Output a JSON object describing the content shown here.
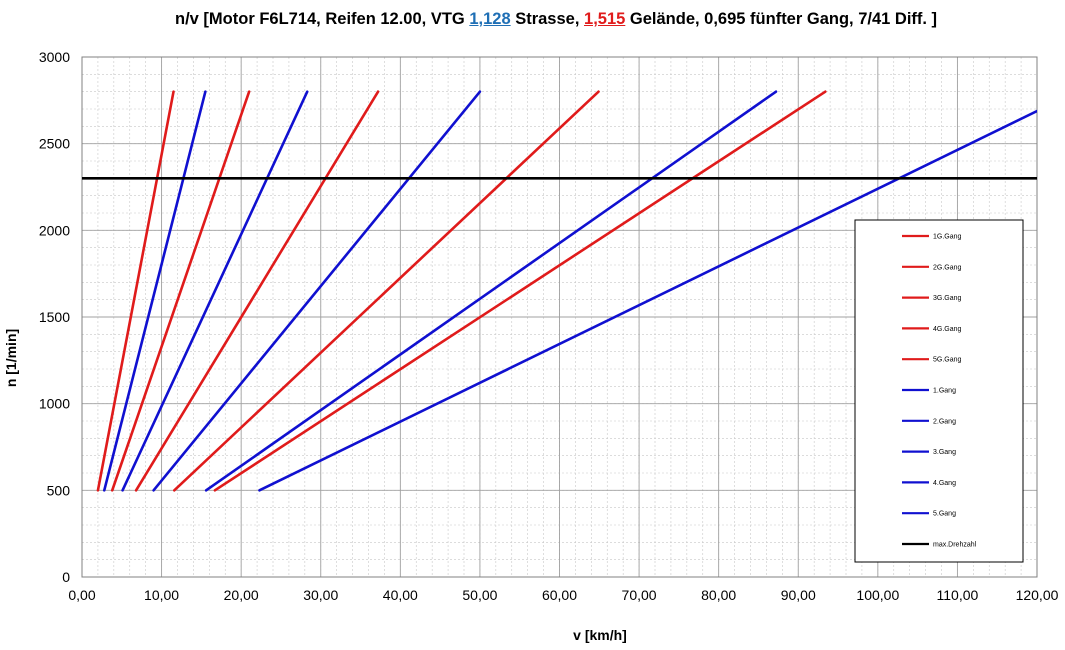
{
  "title": {
    "part1": "n/v [Motor F6L714, Reifen 12.00, VTG ",
    "vtg_street": "1,128",
    "part2": " Strasse, ",
    "vtg_offroad": "1,515",
    "part3": " Gelände, 0,695 fünfter Gang, 7/41 Diff. ]"
  },
  "colors": {
    "red": "#e01b1b",
    "blue": "#1010d0",
    "black": "#000000",
    "grid": "#c0c0c0"
  },
  "chart_data": {
    "type": "line",
    "xlabel": "v [km/h]",
    "ylabel": "n [1/min]",
    "xlim": [
      0,
      120
    ],
    "ylim": [
      0,
      3000
    ],
    "x_ticks": [
      "0,00",
      "10,00",
      "20,00",
      "30,00",
      "40,00",
      "50,00",
      "60,00",
      "70,00",
      "80,00",
      "90,00",
      "100,00",
      "110,00",
      "120,00"
    ],
    "y_ticks": [
      "0",
      "500",
      "1000",
      "1500",
      "2000",
      "2500",
      "3000"
    ],
    "grid": true,
    "legend_position": "right",
    "series": [
      {
        "name": "1G.Gang",
        "color": "red",
        "points": [
          [
            2.0,
            500
          ],
          [
            11.5,
            2800
          ]
        ]
      },
      {
        "name": "2G.Gang",
        "color": "red",
        "points": [
          [
            3.8,
            500
          ],
          [
            21.0,
            2800
          ]
        ]
      },
      {
        "name": "3G.Gang",
        "color": "red",
        "points": [
          [
            6.8,
            500
          ],
          [
            37.2,
            2800
          ]
        ]
      },
      {
        "name": "4G.Gang",
        "color": "red",
        "points": [
          [
            11.6,
            500
          ],
          [
            64.9,
            2800
          ]
        ]
      },
      {
        "name": "5G.Gang",
        "color": "red",
        "points": [
          [
            16.7,
            500
          ],
          [
            93.4,
            2800
          ]
        ]
      },
      {
        "name": "1.Gang",
        "color": "blue",
        "points": [
          [
            2.8,
            500
          ],
          [
            15.5,
            2800
          ]
        ]
      },
      {
        "name": "2.Gang",
        "color": "blue",
        "points": [
          [
            5.1,
            500
          ],
          [
            28.3,
            2800
          ]
        ]
      },
      {
        "name": "3.Gang",
        "color": "blue",
        "points": [
          [
            9.0,
            500
          ],
          [
            50.0,
            2800
          ]
        ]
      },
      {
        "name": "4.Gang",
        "color": "blue",
        "points": [
          [
            15.6,
            500
          ],
          [
            87.2,
            2800
          ]
        ]
      },
      {
        "name": "5.Gang",
        "color": "blue",
        "points": [
          [
            22.3,
            500
          ],
          [
            125.0,
            2800
          ]
        ]
      },
      {
        "name": "max.Drehzahl",
        "color": "black",
        "points": [
          [
            0,
            2300
          ],
          [
            120,
            2300
          ]
        ]
      }
    ]
  }
}
